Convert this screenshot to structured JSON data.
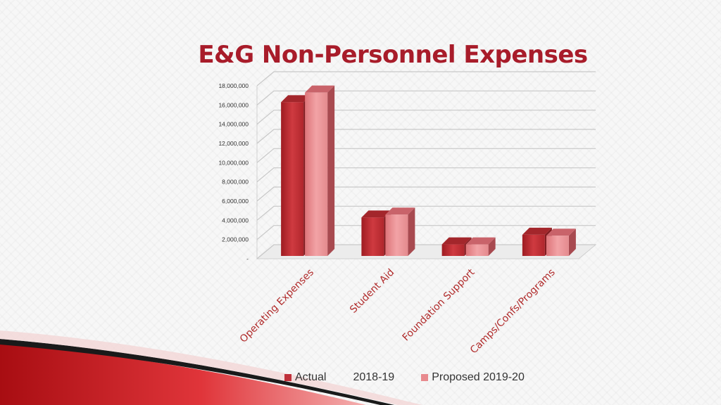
{
  "title": "E&G Non-Personnel Expenses",
  "chart_data": {
    "type": "bar",
    "title": "E&G Non-Personnel Expenses",
    "categories": [
      "Operating  Expenses",
      "Student Aid",
      "Foundation Support",
      "Camps/Confs/Programs"
    ],
    "series": [
      {
        "name": "Actual",
        "values": [
          16000000,
          4000000,
          1200000,
          2200000
        ],
        "color": "#c0303a"
      },
      {
        "name": "Proposed 2019-20",
        "values": [
          17000000,
          4300000,
          1200000,
          2100000
        ],
        "color": "#e88a8e"
      }
    ],
    "legend_extra_label": "2018-19",
    "y_ticks": [
      "-",
      "2,000,000",
      "4,000,000",
      "6,000,000",
      "8,000,000",
      "10,000,000",
      "12,000,000",
      "14,000,000",
      "16,000,000",
      "18,000,000"
    ],
    "ylim": [
      0,
      18000000
    ],
    "grid": true,
    "legend_position": "bottom"
  }
}
